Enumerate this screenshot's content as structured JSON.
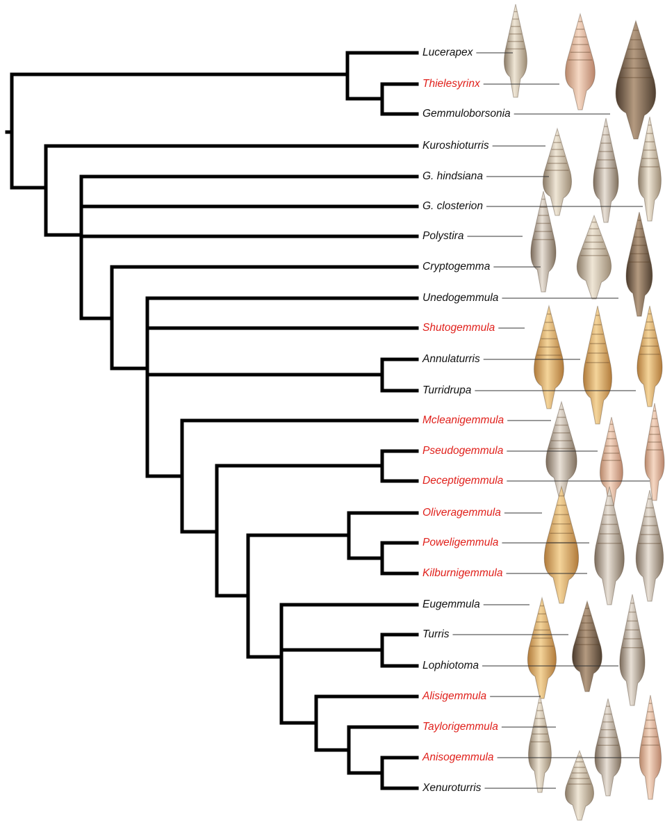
{
  "taxa": [
    {
      "label": "Lucerapex",
      "color": "#111111"
    },
    {
      "label": "Thielesyrinx",
      "color": "#e0201b"
    },
    {
      "label": "Gemmuloborsonia",
      "color": "#111111"
    },
    {
      "label": "Kuroshioturris",
      "color": "#111111"
    },
    {
      "label": "G. hindsiana",
      "color": "#111111"
    },
    {
      "label": "G. closterion",
      "color": "#111111"
    },
    {
      "label": "Polystira",
      "color": "#111111"
    },
    {
      "label": "Cryptogemma",
      "color": "#111111"
    },
    {
      "label": "Unedogemmula",
      "color": "#111111"
    },
    {
      "label": "Shutogemmula",
      "color": "#e0201b"
    },
    {
      "label": "Annulaturris",
      "color": "#111111"
    },
    {
      "label": "Turridrupa",
      "color": "#111111"
    },
    {
      "label": "Mcleanigemmula",
      "color": "#e0201b"
    },
    {
      "label": "Pseudogemmula",
      "color": "#e0201b"
    },
    {
      "label": "Deceptigemmula",
      "color": "#e0201b"
    },
    {
      "label": "Oliveragemmula",
      "color": "#e0201b"
    },
    {
      "label": "Poweligemmula",
      "color": "#e0201b"
    },
    {
      "label": "Kilburnigemmula",
      "color": "#e0201b"
    },
    {
      "label": "Eugemmula",
      "color": "#111111"
    },
    {
      "label": "Turris",
      "color": "#111111"
    },
    {
      "label": "Lophiotoma",
      "color": "#111111"
    },
    {
      "label": "Alisigemmula",
      "color": "#e0201b"
    },
    {
      "label": "Taylorigemmula",
      "color": "#e0201b"
    },
    {
      "label": "Anisogemmula",
      "color": "#e0201b"
    },
    {
      "label": "Xenuroturris",
      "color": "#111111"
    }
  ]
}
